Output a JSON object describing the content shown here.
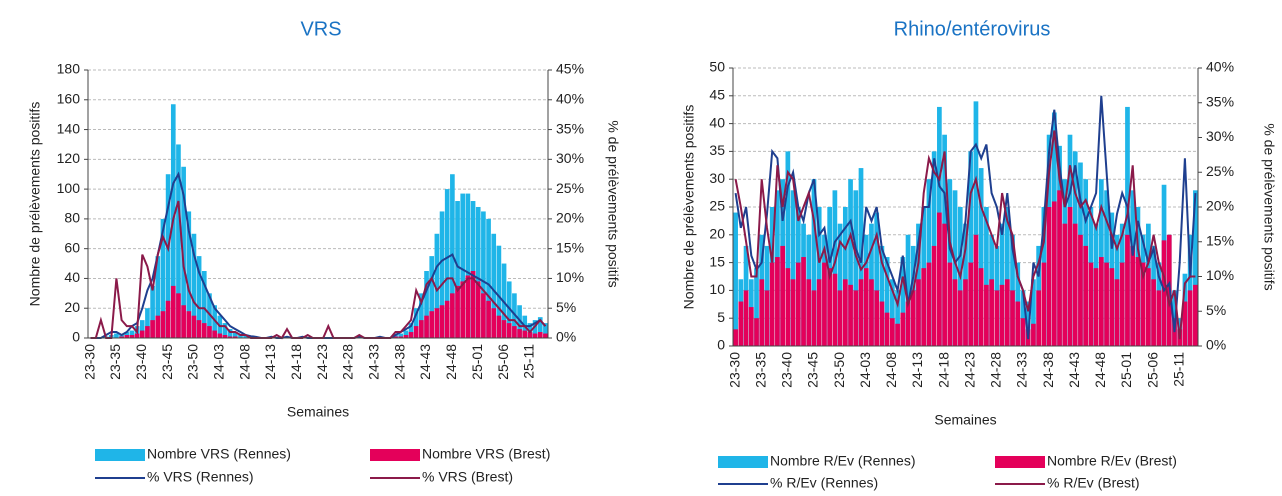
{
  "chart_data": [
    {
      "type": "combo",
      "title": "VRS",
      "y_label": "Nombre de prélèvements positifs",
      "y2_label": "% de prélèvements positifs",
      "x_label": "Semaines",
      "grid": true,
      "categories": [
        "23-30",
        null,
        null,
        null,
        null,
        "23-35",
        null,
        null,
        null,
        null,
        "23-40",
        null,
        null,
        null,
        null,
        "23-45",
        null,
        null,
        null,
        null,
        "23-50",
        null,
        null,
        null,
        null,
        "24-03",
        null,
        null,
        null,
        null,
        "24-08",
        null,
        null,
        null,
        null,
        "24-13",
        null,
        null,
        null,
        null,
        "24-18",
        null,
        null,
        null,
        null,
        "24-23",
        null,
        null,
        null,
        null,
        "24-28",
        null,
        null,
        null,
        null,
        "24-33",
        null,
        null,
        null,
        null,
        "24-38",
        null,
        null,
        null,
        null,
        "24-43",
        null,
        null,
        null,
        null,
        "24-48",
        null,
        null,
        null,
        null,
        "25-01",
        null,
        null,
        null,
        null,
        "25-06",
        null,
        null,
        null,
        null,
        "25-11",
        null,
        null,
        null
      ],
      "ylim": [
        0,
        180
      ],
      "yticks": [
        0,
        20,
        40,
        60,
        80,
        100,
        120,
        140,
        160,
        180
      ],
      "y2lim": [
        0,
        45
      ],
      "y2ticks": [
        {
          "value": 0,
          "label": "0%"
        },
        {
          "value": 5,
          "label": "5%"
        },
        {
          "value": 10,
          "label": "10%"
        },
        {
          "value": 15,
          "label": "15%"
        },
        {
          "value": 20,
          "label": "20%"
        },
        {
          "value": 25,
          "label": "25%"
        },
        {
          "value": 30,
          "label": "30%"
        },
        {
          "value": 35,
          "label": "35%"
        },
        {
          "value": 40,
          "label": "40%"
        },
        {
          "value": 45,
          "label": "45%"
        }
      ],
      "series": [
        {
          "name": "Nombre VRS (Rennes)",
          "mark": "bar",
          "color": "#1fb5e8",
          "values": [
            0,
            0,
            0,
            1,
            2,
            3,
            2,
            4,
            5,
            8,
            12,
            20,
            35,
            55,
            80,
            110,
            157,
            130,
            115,
            85,
            70,
            55,
            45,
            30,
            22,
            15,
            10,
            6,
            4,
            2,
            2,
            1,
            1,
            0,
            0,
            1,
            0,
            0,
            1,
            0,
            0,
            1,
            0,
            0,
            0,
            0,
            0,
            0,
            0,
            0,
            0,
            0,
            1,
            0,
            0,
            0,
            1,
            0,
            0,
            2,
            3,
            5,
            10,
            20,
            30,
            45,
            55,
            70,
            85,
            100,
            110,
            92,
            97,
            97,
            92,
            88,
            85,
            80,
            70,
            62,
            50,
            38,
            30,
            22,
            15,
            10,
            12,
            14,
            10
          ]
        },
        {
          "name": "Nombre VRS (Brest)",
          "mark": "bar",
          "color": "#e4005a",
          "values": [
            0,
            0,
            0,
            0,
            0,
            0,
            1,
            2,
            2,
            3,
            5,
            8,
            12,
            15,
            18,
            25,
            35,
            30,
            22,
            18,
            15,
            12,
            10,
            8,
            5,
            3,
            2,
            1,
            1,
            0,
            0,
            0,
            0,
            0,
            0,
            0,
            0,
            0,
            0,
            0,
            0,
            0,
            0,
            0,
            0,
            0,
            0,
            0,
            0,
            0,
            0,
            0,
            0,
            0,
            0,
            0,
            0,
            0,
            0,
            1,
            1,
            2,
            4,
            8,
            12,
            15,
            18,
            20,
            22,
            25,
            30,
            35,
            38,
            42,
            45,
            38,
            30,
            25,
            20,
            15,
            12,
            10,
            8,
            6,
            5,
            4,
            3,
            4,
            3
          ]
        },
        {
          "name": "% VRS (Rennes)",
          "mark": "line",
          "axis": "y2",
          "color": "#1f3f8f",
          "values": [
            0,
            0,
            0,
            0.5,
            1,
            1,
            0.5,
            1,
            2,
            2.5,
            5,
            8,
            10,
            14,
            18,
            22,
            26,
            27.5,
            24,
            18,
            14,
            11,
            9,
            7,
            5,
            4,
            3,
            2,
            1.5,
            1,
            0.5,
            0.3,
            0.2,
            0,
            0,
            0.2,
            0,
            0,
            0.2,
            0,
            0,
            0.2,
            0,
            0,
            0,
            0,
            0,
            0,
            0,
            0,
            0,
            0,
            0.2,
            0,
            0,
            0,
            0.2,
            0,
            0,
            0.5,
            1,
            1.5,
            2,
            4,
            6,
            8,
            10,
            12,
            13,
            13.5,
            14,
            12,
            11.5,
            11,
            10.5,
            10,
            9.5,
            9,
            8,
            7,
            6,
            5,
            4,
            3,
            2,
            2,
            2.5,
            3,
            2
          ]
        },
        {
          "name": "% VRS (Brest)",
          "mark": "line",
          "axis": "y2",
          "color": "#8b1a4a",
          "values": [
            0,
            0,
            3,
            0,
            0,
            10,
            3,
            2,
            2,
            1,
            14,
            12,
            8,
            14,
            17,
            15,
            20,
            23,
            12,
            8,
            6,
            5,
            5,
            4,
            3,
            2,
            2,
            1,
            1,
            0.5,
            0.5,
            0,
            0,
            0,
            0,
            0,
            0.5,
            0,
            1.5,
            0,
            0,
            0,
            0.5,
            0,
            0,
            0,
            2,
            0,
            0,
            0,
            0,
            0,
            0.5,
            0,
            0,
            0,
            0,
            0,
            0,
            1,
            1,
            2,
            3,
            8,
            6,
            9,
            10,
            8,
            9,
            10,
            10,
            8,
            9,
            10,
            10,
            9,
            8,
            7,
            6,
            5,
            4,
            3,
            3,
            2,
            2,
            1,
            2,
            3,
            2
          ]
        }
      ]
    },
    {
      "type": "combo",
      "title": "Rhino/entérovirus",
      "y_label": "Nombre de prélèvements positifs",
      "y2_label": "% de prélèvements positifs",
      "x_label": "Semaines",
      "grid": true,
      "categories": [
        "23-30",
        null,
        null,
        null,
        null,
        "23-35",
        null,
        null,
        null,
        null,
        "23-40",
        null,
        null,
        null,
        null,
        "23-45",
        null,
        null,
        null,
        null,
        "23-50",
        null,
        null,
        null,
        null,
        "24-03",
        null,
        null,
        null,
        null,
        "24-08",
        null,
        null,
        null,
        null,
        "24-13",
        null,
        null,
        null,
        null,
        "24-18",
        null,
        null,
        null,
        null,
        "24-23",
        null,
        null,
        null,
        null,
        "24-28",
        null,
        null,
        null,
        null,
        "24-33",
        null,
        null,
        null,
        null,
        "24-38",
        null,
        null,
        null,
        null,
        "24-43",
        null,
        null,
        null,
        null,
        "24-48",
        null,
        null,
        null,
        null,
        "25-01",
        null,
        null,
        null,
        null,
        "25-06",
        null,
        null,
        null,
        null,
        "25-11",
        null,
        null,
        null
      ],
      "ylim": [
        0,
        50
      ],
      "yticks": [
        0,
        5,
        10,
        15,
        20,
        25,
        30,
        35,
        40,
        45,
        50
      ],
      "y2lim": [
        0,
        40
      ],
      "y2ticks": [
        {
          "value": 0,
          "label": "0%"
        },
        {
          "value": 5,
          "label": "5%"
        },
        {
          "value": 10,
          "label": "10%"
        },
        {
          "value": 15,
          "label": "15%"
        },
        {
          "value": 20,
          "label": "20%"
        },
        {
          "value": 25,
          "label": "25%"
        },
        {
          "value": 30,
          "label": "30%"
        },
        {
          "value": 35,
          "label": "35%"
        },
        {
          "value": 40,
          "label": "40%"
        }
      ],
      "series": [
        {
          "name": "Nombre R/Ev (Rennes)",
          "mark": "bar",
          "color": "#1fb5e8",
          "values": [
            24,
            12,
            18,
            12,
            14,
            20,
            18,
            25,
            28,
            30,
            35,
            28,
            25,
            22,
            20,
            30,
            25,
            20,
            25,
            28,
            22,
            25,
            30,
            28,
            32,
            20,
            22,
            24,
            18,
            16,
            12,
            10,
            16,
            20,
            18,
            22,
            25,
            30,
            35,
            43,
            38,
            30,
            28,
            25,
            22,
            35,
            44,
            32,
            25,
            20,
            18,
            22,
            25,
            20,
            15,
            10,
            8,
            12,
            18,
            25,
            38,
            42,
            36,
            30,
            38,
            35,
            33,
            30,
            25,
            22,
            30,
            28,
            24,
            20,
            22,
            43,
            28,
            25,
            20,
            22,
            18,
            15,
            29,
            20,
            10,
            5,
            13,
            20,
            28
          ]
        },
        {
          "name": "Nombre R/Ev (Brest)",
          "mark": "bar",
          "color": "#e4005a",
          "values": [
            3,
            8,
            10,
            7,
            5,
            12,
            10,
            15,
            16,
            18,
            14,
            12,
            15,
            16,
            12,
            10,
            12,
            15,
            14,
            13,
            10,
            12,
            11,
            10,
            12,
            14,
            12,
            10,
            8,
            6,
            5,
            4,
            6,
            8,
            10,
            12,
            14,
            15,
            18,
            24,
            22,
            15,
            12,
            10,
            12,
            15,
            20,
            14,
            11,
            12,
            10,
            11,
            12,
            10,
            8,
            5,
            3,
            4,
            10,
            15,
            25,
            26,
            28,
            22,
            25,
            22,
            20,
            18,
            15,
            14,
            16,
            15,
            14,
            12,
            15,
            20,
            18,
            16,
            15,
            14,
            12,
            10,
            19,
            20,
            5,
            3,
            8,
            10,
            11
          ]
        },
        {
          "name": "% R/Ev (Rennes)",
          "mark": "line",
          "axis": "y2",
          "color": "#1f3f8f",
          "values": [
            22,
            17,
            20,
            13,
            11,
            12,
            19,
            28,
            27,
            18,
            23,
            25,
            20,
            18,
            22,
            24,
            16,
            17,
            12,
            15,
            16,
            17,
            18,
            14,
            12,
            20,
            18,
            20,
            14,
            12,
            10,
            8,
            13,
            6,
            10,
            15,
            20,
            20,
            27,
            23,
            22,
            14,
            12,
            13,
            18,
            28,
            29,
            27,
            29,
            22,
            20,
            16,
            22,
            14,
            10,
            8,
            1,
            12,
            10,
            18,
            28,
            34,
            26,
            20,
            22,
            26,
            21,
            18,
            20,
            22,
            36,
            25,
            14,
            19,
            22,
            20,
            13,
            18,
            15,
            12,
            14,
            10,
            8,
            9,
            2,
            12,
            27,
            10,
            22
          ]
        },
        {
          "name": "% R/Ev (Brest)",
          "mark": "line",
          "axis": "y2",
          "color": "#8b1a4a",
          "values": [
            24,
            20,
            15,
            10,
            10,
            24,
            17,
            12,
            26,
            20,
            25,
            24,
            18,
            20,
            22,
            18,
            12,
            14,
            10,
            12,
            15,
            14,
            16,
            13,
            11,
            12,
            14,
            16,
            12,
            10,
            8,
            6,
            10,
            6,
            8,
            12,
            22,
            27,
            25,
            24,
            28,
            15,
            12,
            10,
            14,
            22,
            24,
            20,
            18,
            16,
            14,
            22,
            18,
            16,
            10,
            8,
            5,
            10,
            12,
            15,
            25,
            31,
            24,
            20,
            26,
            22,
            20,
            21,
            19,
            17,
            20,
            18,
            16,
            14,
            16,
            19,
            26,
            14,
            10,
            12,
            16,
            12,
            10,
            6,
            8,
            1,
            9,
            10,
            10
          ]
        }
      ]
    }
  ]
}
